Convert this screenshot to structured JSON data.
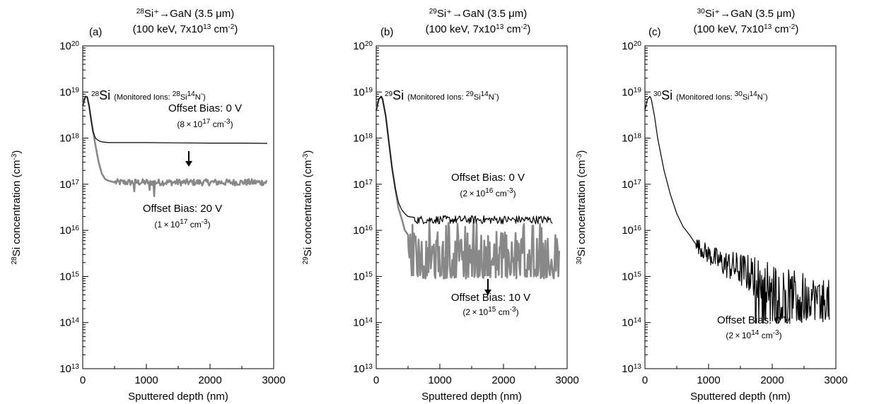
{
  "chart_data": [
    {
      "type": "line",
      "panel": "(a)",
      "title": {
        "iso": "28",
        "line1": "Si⁺→GaN (3.5 μm)",
        "line2": "(100 keV, 7x10",
        "line2_exp": "13",
        "line2_unit": " cm",
        "line2_unit_exp": "-2",
        "line2_close": ")"
      },
      "ylabel": {
        "iso": "28",
        "text": "Si concentration (cm",
        "exp": "-3",
        "close": ")"
      },
      "xlabel": "Sputtered depth (nm)",
      "xlim": [
        0,
        3000
      ],
      "ylim": [
        10000000000000.0,
        1e+20
      ],
      "yscale": "log",
      "xticks": [
        "0",
        "1000",
        "2000",
        "3000"
      ],
      "yticks": [
        "13",
        "14",
        "15",
        "16",
        "17",
        "18",
        "19",
        "20"
      ],
      "ytick_base": "10",
      "legend_label": {
        "iso": "28",
        "el": "Si",
        "monitor_pre": "(Monitored Ions: ",
        "monitor_iso1": "28",
        "monitor_mid": "Si",
        "monitor_iso2": "14",
        "monitor_post": "N",
        "monitor_sup": "-",
        "monitor_close": ")"
      },
      "annotations": [
        {
          "text": "Offset Bias: 0 V",
          "value_pre": "(8 × 10",
          "value_exp": "17",
          "value_post": " cm",
          "value_unit_exp": "-3",
          "value_close": ")"
        },
        {
          "text": "Offset Bias: 20 V",
          "value_pre": "(1 × 10",
          "value_exp": "17",
          "value_post": " cm",
          "value_unit_exp": "-3",
          "value_close": ")"
        }
      ],
      "series": [
        {
          "name": "Offset Bias: 0 V",
          "color": "#000000",
          "x": [
            0,
            40,
            70,
            100,
            130,
            160,
            200,
            250,
            300,
            400,
            500,
            700,
            1000,
            1500,
            2000,
            2500,
            2900
          ],
          "y": [
            5e+18,
            8e+18,
            7.8e+18,
            5e+18,
            2.5e+18,
            1.4e+18,
            1e+18,
            8.8e+17,
            8.3e+17,
            8e+17,
            8e+17,
            8e+17,
            8e+17,
            7.9e+17,
            7.8e+17,
            7.8e+17,
            7.7e+17
          ]
        },
        {
          "name": "Offset Bias: 20 V",
          "color": "#888888",
          "x": [
            0,
            40,
            70,
            100,
            150,
            200,
            250,
            300,
            350,
            400,
            450,
            500
          ],
          "y": [
            5e+18,
            8e+18,
            7.8e+18,
            5e+18,
            1.8e+18,
            7e+17,
            3e+17,
            1.7e+17,
            1.3e+17,
            1.2e+17,
            1.15e+17,
            1.1e+17
          ],
          "noise_start": 500,
          "noise_end": 2900,
          "noise_level": 1.1e+17,
          "noise_amp": 0.07,
          "dips": [
            [
              800,
              7e+16
            ],
            [
              1120,
              5.5e+16
            ],
            [
              1050,
              7.5e+16
            ]
          ]
        }
      ]
    },
    {
      "type": "line",
      "panel": "(b)",
      "title": {
        "iso": "29",
        "line1": "Si⁺→GaN (3.5 μm)",
        "line2": "(100 keV, 7x10",
        "line2_exp": "13",
        "line2_unit": " cm",
        "line2_unit_exp": "-2",
        "line2_close": ")"
      },
      "ylabel": {
        "iso": "29",
        "text": "Si concentration (cm",
        "exp": "-3",
        "close": ")"
      },
      "xlabel": "Sputtered depth (nm)",
      "xlim": [
        0,
        3000
      ],
      "ylim": [
        10000000000000.0,
        1e+20
      ],
      "yscale": "log",
      "xticks": [
        "0",
        "1000",
        "2000",
        "3000"
      ],
      "yticks": [
        "13",
        "14",
        "15",
        "16",
        "17",
        "18",
        "19",
        "20"
      ],
      "ytick_base": "10",
      "legend_label": {
        "iso": "29",
        "el": "Si",
        "monitor_pre": "(Monitored Ions: ",
        "monitor_iso1": "29",
        "monitor_mid": "Si",
        "monitor_iso2": "14",
        "monitor_post": "N",
        "monitor_sup": "-",
        "monitor_close": ")"
      },
      "annotations": [
        {
          "text": "Offset Bias: 0 V",
          "value_pre": "(2 × 10",
          "value_exp": "16",
          "value_post": " cm",
          "value_unit_exp": "-3",
          "value_close": ")"
        },
        {
          "text": "Offset Bias: 10 V",
          "value_pre": "(2 × 10",
          "value_exp": "15",
          "value_post": " cm",
          "value_unit_exp": "-3",
          "value_close": ")"
        }
      ],
      "series": [
        {
          "name": "Offset Bias: 0 V",
          "color": "#000000",
          "x": [
            0,
            40,
            80,
            100,
            150,
            200,
            250,
            300,
            350,
            400,
            450,
            500,
            600
          ],
          "y": [
            4e+18,
            7e+18,
            8e+18,
            7e+18,
            3e+18,
            8e+17,
            2.2e+17,
            8e+16,
            4e+16,
            2.8e+16,
            2.3e+16,
            2e+16,
            1.9e+16
          ],
          "noise_start": 600,
          "noise_end": 2780,
          "noise_level": 1.7e+16,
          "noise_amp": 0.09,
          "dips": []
        },
        {
          "name": "Offset Bias: 10 V",
          "color": "#888888",
          "x": [
            0,
            40,
            80,
            100,
            150,
            200,
            250,
            300,
            350,
            400,
            450,
            500
          ],
          "y": [
            4e+18,
            7e+18,
            8e+18,
            7e+18,
            3e+18,
            8e+17,
            2.2e+17,
            8e+16,
            3e+16,
            1.8e+16,
            1e+16,
            8000000000000000.0
          ],
          "noise_start": 500,
          "noise_end": 2880,
          "noise_level": 3000000000000000.0,
          "noise_amp": 0.5,
          "noise_floor": 900000000000000.0,
          "noise_ceiling": 1.6e+16,
          "dips": []
        }
      ]
    },
    {
      "type": "line",
      "panel": "(c)",
      "title": {
        "iso": "30",
        "line1": "Si⁺→GaN (3.5 μm)",
        "line2": "(100 keV, 7x10",
        "line2_exp": "13",
        "line2_unit": " cm",
        "line2_unit_exp": "-2",
        "line2_close": ")"
      },
      "ylabel": {
        "iso": "30",
        "text": "Si concentration (cm",
        "exp": "-3",
        "close": ")"
      },
      "xlabel": "Sputtered depth (nm)",
      "xlim": [
        0,
        3000
      ],
      "ylim": [
        10000000000000.0,
        1e+20
      ],
      "yscale": "log",
      "xticks": [
        "0",
        "1000",
        "2000",
        "3000"
      ],
      "yticks": [
        "13",
        "14",
        "15",
        "16",
        "17",
        "18",
        "19",
        "20"
      ],
      "ytick_base": "10",
      "legend_label": {
        "iso": "30",
        "el": "Si",
        "monitor_pre": "(Monitored Ions: ",
        "monitor_iso1": "30",
        "monitor_mid": "Si",
        "monitor_iso2": "14",
        "monitor_post": "N",
        "monitor_sup": "-",
        "monitor_close": ")"
      },
      "annotations": [
        {
          "text": "Offset Bias: 0 V",
          "value_pre": "(2 × 10",
          "value_exp": "14",
          "value_post": " cm",
          "value_unit_exp": "-3",
          "value_close": ")"
        }
      ],
      "series": [
        {
          "name": "Offset Bias: 0 V",
          "color": "#000000",
          "x": [
            0,
            40,
            80,
            100,
            150,
            200,
            300,
            400,
            500,
            600,
            700,
            800
          ],
          "y": [
            4e+18,
            7e+18,
            8e+18,
            7e+18,
            3e+18,
            1e+18,
            2e+17,
            6e+16,
            2.3e+16,
            1.2e+16,
            8000000000000000.0,
            5000000000000000.0
          ],
          "trend": [
            [
              800,
              5000000000000000.0
            ],
            [
              1000,
              3000000000000000.0
            ],
            [
              1200,
              2000000000000000.0
            ],
            [
              1500,
              1400000000000000.0
            ],
            [
              1800,
              900000000000000.0
            ],
            [
              2100,
              600000000000000.0
            ],
            [
              2400,
              450000000000000.0
            ],
            [
              2900,
              300000000000000.0
            ]
          ],
          "noise_start": 800,
          "noise_end": 2900,
          "noise_amp": 0.45,
          "noise_floor": 100000000000000.0,
          "dips": []
        }
      ]
    }
  ]
}
